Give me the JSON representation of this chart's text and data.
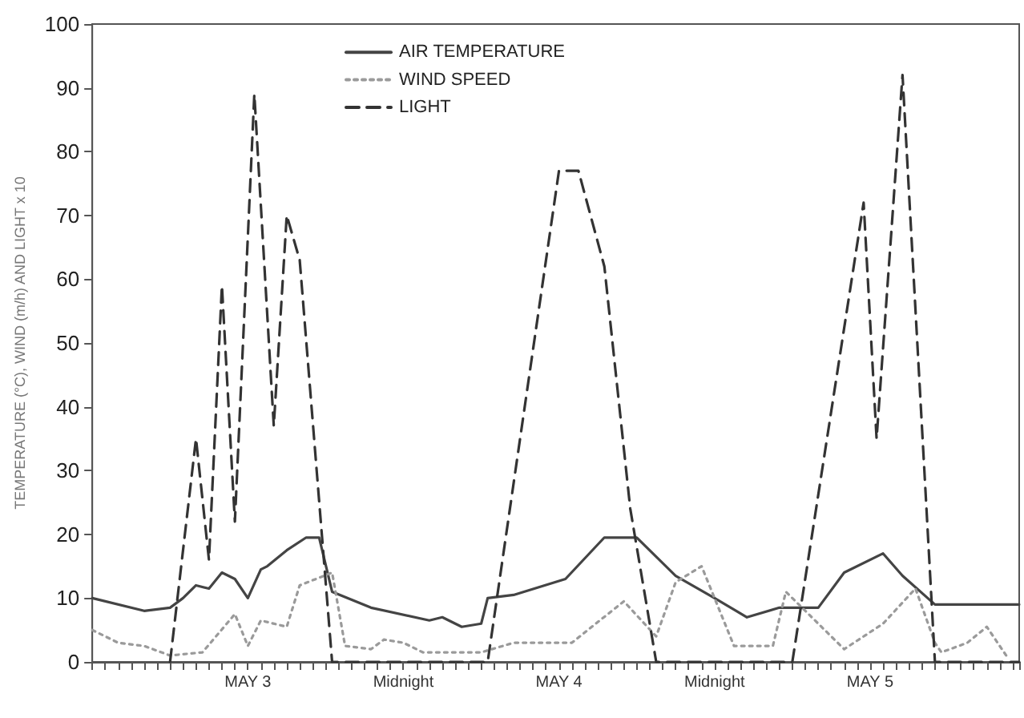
{
  "chart_data": {
    "type": "line",
    "ylabel": "TEMPERATURE (°C), WIND (m/h) AND LIGHT x 10",
    "categories": [
      null,
      null,
      null,
      null,
      null,
      null,
      null,
      null,
      null,
      null,
      null,
      null,
      null,
      null,
      null,
      null,
      null,
      null,
      null,
      null,
      null,
      null,
      null,
      null,
      "MAY 3",
      null,
      null,
      null,
      null,
      null,
      null,
      null,
      null,
      null,
      null,
      null,
      null,
      null,
      null,
      null,
      null,
      null,
      null,
      null,
      null,
      null,
      null,
      null,
      "Midnight",
      null,
      null,
      null,
      null,
      null,
      null,
      null,
      null,
      null,
      null,
      null,
      null,
      null,
      null,
      null,
      null,
      null,
      null,
      null,
      null,
      null,
      null,
      null,
      "MAY 4",
      null,
      null,
      null,
      null,
      null,
      null,
      null,
      null,
      null,
      null,
      null,
      null,
      null,
      null,
      null,
      null,
      null,
      null,
      null,
      null,
      null,
      null,
      null,
      "Midnight",
      null,
      null,
      null,
      null,
      null,
      null,
      null,
      null,
      null,
      null,
      null,
      null,
      null,
      null,
      null,
      null,
      null,
      null,
      null,
      null,
      null,
      null,
      null,
      "MAY 5",
      null,
      null,
      null,
      null,
      null,
      null,
      null,
      null,
      null,
      null,
      null,
      null,
      null,
      null,
      null,
      null,
      null,
      null,
      null,
      null,
      null,
      null,
      null
    ],
    "ylim": [
      0,
      100
    ],
    "yticks": [
      0,
      10,
      20,
      30,
      40,
      50,
      60,
      70,
      80,
      90,
      100
    ],
    "grid": false,
    "legend": "top",
    "marker": "none",
    "series": [
      {
        "name": "AIR TEMPERATURE",
        "color": "#444444",
        "line_style": "solid",
        "values": [
          10,
          null,
          null,
          null,
          null,
          null,
          null,
          null,
          8,
          null,
          null,
          null,
          8.5,
          null,
          10,
          null,
          12,
          null,
          11.5,
          null,
          14,
          null,
          13,
          null,
          10,
          null,
          14.5,
          15,
          null,
          null,
          17.5,
          null,
          null,
          19.5,
          null,
          19.5,
          null,
          11,
          null,
          null,
          null,
          null,
          null,
          8.5,
          null,
          null,
          null,
          null,
          null,
          null,
          null,
          null,
          6.5,
          null,
          7,
          null,
          null,
          5.5,
          null,
          null,
          6,
          10,
          null,
          null,
          null,
          10.5,
          null,
          null,
          null,
          null,
          null,
          null,
          null,
          13,
          null,
          null,
          null,
          null,
          null,
          19.5,
          null,
          null,
          null,
          null,
          19.5,
          null,
          null,
          null,
          null,
          null,
          13.5,
          null,
          null,
          null,
          null,
          null,
          10,
          null,
          null,
          null,
          null,
          7,
          null,
          null,
          null,
          null,
          8.5,
          null,
          null,
          null,
          null,
          null,
          8.5,
          null,
          null,
          null,
          14,
          null,
          null,
          null,
          null,
          null,
          17,
          null,
          null,
          13.5,
          null,
          null,
          null,
          null,
          9,
          null,
          null,
          null,
          9,
          null,
          null,
          null,
          null,
          null,
          null,
          null,
          null,
          9
        ]
      },
      {
        "name": "WIND SPEED",
        "color": "#9a9a9a",
        "line_style": "dotted",
        "values": [
          5,
          null,
          null,
          null,
          3,
          null,
          null,
          null,
          2.5,
          null,
          null,
          null,
          1,
          null,
          null,
          null,
          null,
          1.5,
          null,
          null,
          null,
          null,
          7.5,
          null,
          2.5,
          null,
          6.5,
          null,
          null,
          null,
          5.5,
          null,
          12,
          null,
          null,
          null,
          null,
          14,
          null,
          2.5,
          null,
          null,
          null,
          2,
          null,
          3.5,
          null,
          null,
          3,
          null,
          null,
          1.5,
          null,
          null,
          null,
          null,
          null,
          null,
          null,
          null,
          1.5,
          null,
          null,
          null,
          null,
          3,
          null,
          null,
          null,
          null,
          null,
          null,
          null,
          null,
          3,
          null,
          null,
          null,
          null,
          null,
          null,
          null,
          9.5,
          null,
          null,
          null,
          null,
          4,
          null,
          null,
          12.5,
          null,
          null,
          null,
          15,
          null,
          null,
          null,
          null,
          2.5,
          null,
          null,
          null,
          null,
          null,
          2.5,
          null,
          11,
          null,
          null,
          null,
          null,
          null,
          null,
          null,
          null,
          2,
          null,
          null,
          null,
          null,
          null,
          6,
          null,
          null,
          null,
          null,
          11.5,
          null,
          null,
          3,
          1.5,
          null,
          null,
          null,
          3,
          null,
          null,
          5.5,
          null,
          null,
          1,
          null,
          null
        ]
      },
      {
        "name": "LIGHT",
        "color": "#333333",
        "line_style": "dashed",
        "values": [
          null,
          null,
          null,
          null,
          null,
          null,
          null,
          null,
          null,
          null,
          null,
          null,
          0,
          null,
          null,
          null,
          35,
          null,
          16,
          null,
          59,
          null,
          22,
          null,
          null,
          89,
          null,
          null,
          37,
          null,
          70,
          null,
          63,
          null,
          null,
          null,
          null,
          0,
          null,
          null,
          null,
          null,
          null,
          null,
          null,
          null,
          null,
          null,
          null,
          null,
          null,
          null,
          null,
          null,
          null,
          null,
          null,
          null,
          null,
          null,
          null,
          0,
          null,
          null,
          null,
          null,
          null,
          42,
          null,
          null,
          null,
          null,
          77,
          null,
          null,
          77,
          null,
          null,
          null,
          62,
          null,
          null,
          null,
          24,
          null,
          null,
          null,
          0,
          null,
          null,
          null,
          null,
          null,
          null,
          null,
          null,
          null,
          null,
          null,
          null,
          null,
          null,
          null,
          null,
          null,
          null,
          null,
          null,
          0,
          null,
          null,
          null,
          null,
          null,
          null,
          null,
          null,
          null,
          null,
          72,
          null,
          35,
          null,
          null,
          null,
          92,
          null,
          null,
          null,
          null,
          0,
          null,
          null,
          null,
          null,
          null,
          null,
          null,
          null,
          null,
          null,
          null,
          null,
          0
        ]
      }
    ]
  }
}
